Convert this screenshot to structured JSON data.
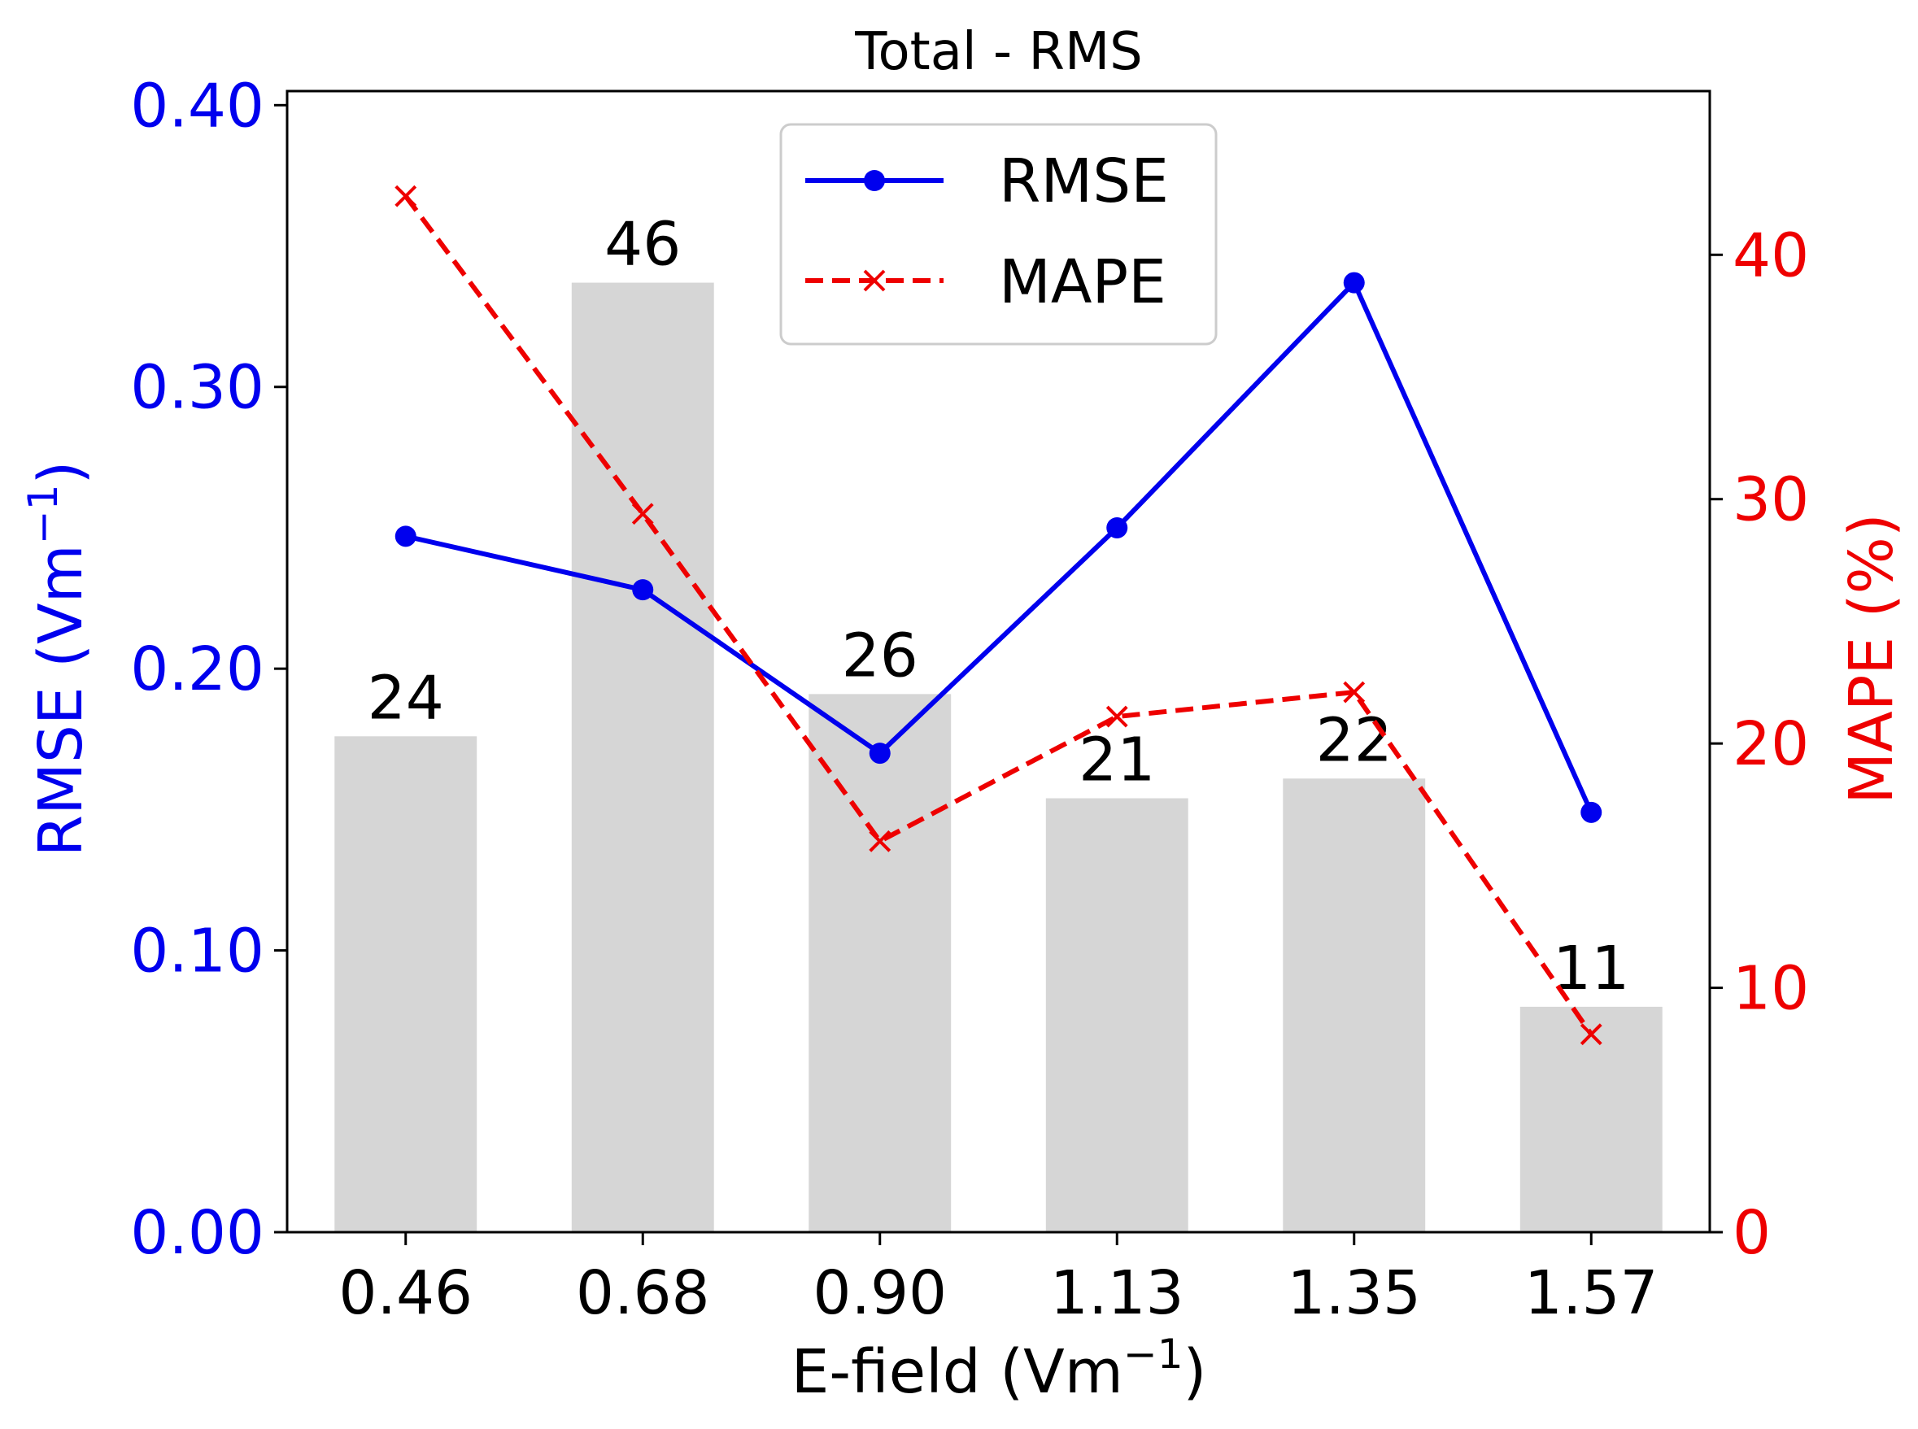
{
  "chart_data": {
    "type": "bar",
    "title": "Total - RMS",
    "xlabel": "E-field (Vm",
    "xlabel_sup": "−1",
    "xlabel_end": ")",
    "ylabel": "RMSE (Vm",
    "ylabel_sup": "−1",
    "ylabel_end": ")",
    "y2label": "MAPE (%)",
    "categories": [
      "0.46",
      "0.68",
      "0.90",
      "1.13",
      "1.35",
      "1.57"
    ],
    "ylim": [
      0,
      0.405
    ],
    "y2lim": [
      0,
      46.7
    ],
    "yticks": [
      "0.00",
      "0.10",
      "0.20",
      "0.30",
      "0.40"
    ],
    "y2ticks": [
      "0",
      "10",
      "20",
      "30",
      "40"
    ],
    "bars": {
      "axis": "left",
      "values": [
        0.176,
        0.337,
        0.191,
        0.154,
        0.161,
        0.08
      ],
      "labels": [
        "24",
        "46",
        "26",
        "21",
        "22",
        "11"
      ],
      "color": "#d6d6d6"
    },
    "series": [
      {
        "name": "RMSE",
        "axis": "left",
        "values": [
          0.247,
          0.228,
          0.17,
          0.25,
          0.337,
          0.149
        ],
        "color": "#0000ee",
        "marker": "circle",
        "linestyle": "solid"
      },
      {
        "name": "MAPE",
        "axis": "right",
        "values": [
          42.4,
          29.4,
          16.0,
          21.1,
          22.1,
          8.1
        ],
        "color": "#ee0000",
        "marker": "x",
        "linestyle": "dashed"
      }
    ],
    "legend_position": "top-center",
    "grid": false,
    "colors": {
      "left_axis": "#0000ee",
      "right_axis": "#ee0000",
      "text": "#000000"
    }
  }
}
